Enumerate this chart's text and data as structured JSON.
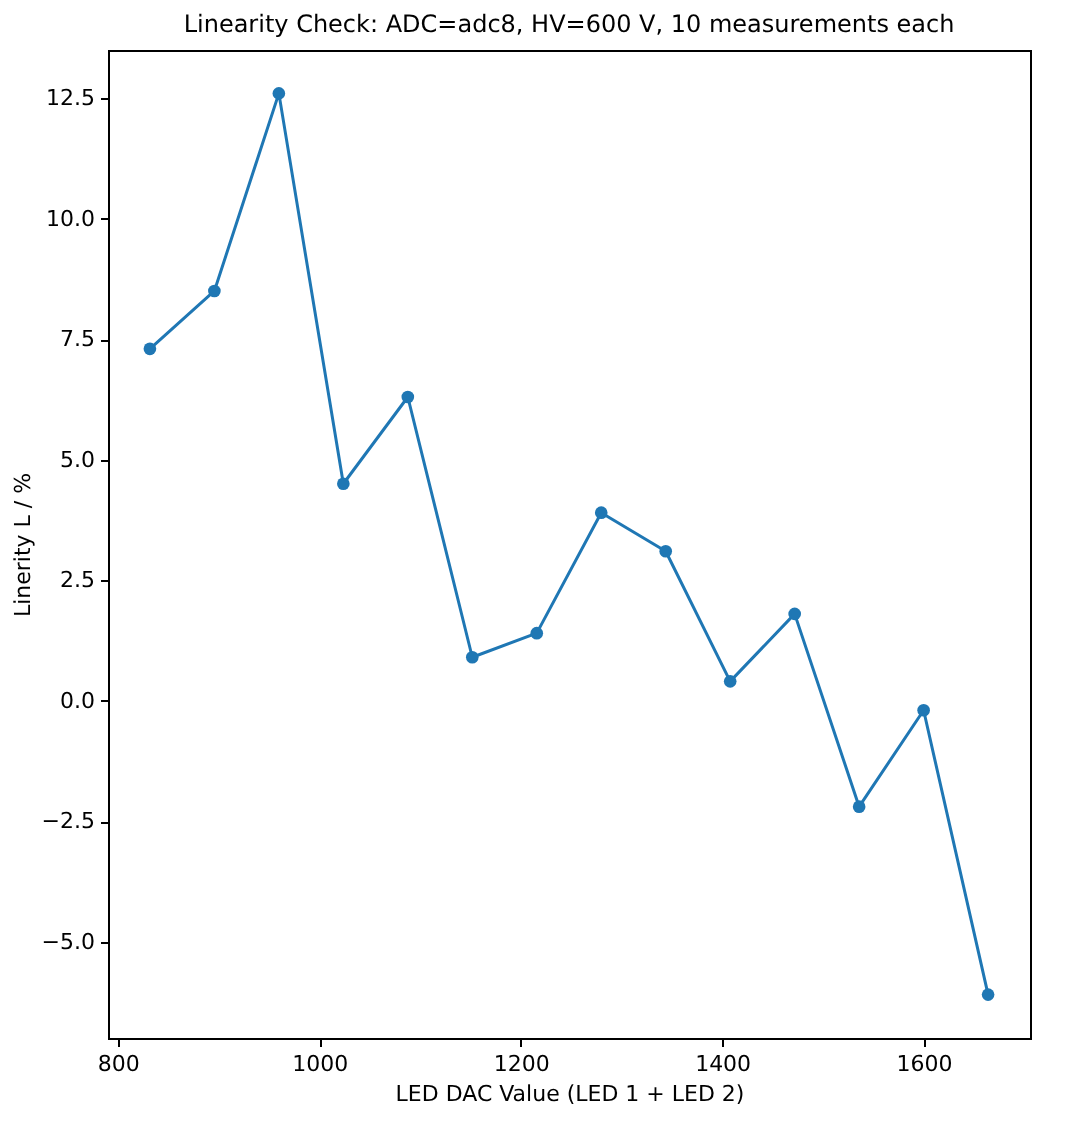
{
  "chart_data": {
    "type": "line",
    "title": "Linearity Check: ADC=adc8, HV=600 V, 10 measurements each",
    "xlabel": "LED DAC Value (LED 1 + LED 2)",
    "ylabel": "Linerity L / %",
    "x": [
      832,
      896,
      960,
      1024,
      1088,
      1152,
      1216,
      1280,
      1344,
      1408,
      1472,
      1536,
      1600,
      1664
    ],
    "series": [
      {
        "color": "#1f77b4",
        "values": [
          7.3,
          8.5,
          12.6,
          4.5,
          6.3,
          0.9,
          1.4,
          3.9,
          3.1,
          0.4,
          1.8,
          -2.2,
          -0.2,
          -6.1
        ]
      }
    ],
    "xlim": [
      790.4,
      1705.6
    ],
    "xticks": [
      800,
      1000,
      1200,
      1400,
      1600
    ],
    "ylim": [
      -7.0,
      13.5
    ],
    "yticks": [
      {
        "value": -5,
        "label": "−5.0"
      },
      {
        "value": -2.5,
        "label": "−2.5"
      },
      {
        "value": 0,
        "label": "0.0"
      },
      {
        "value": 2.5,
        "label": "2.5"
      },
      {
        "value": 5,
        "label": "5.0"
      },
      {
        "value": 7.5,
        "label": "7.5"
      },
      {
        "value": 10,
        "label": "10.0"
      },
      {
        "value": 12.5,
        "label": "12.5"
      }
    ],
    "grid": false,
    "marker": "circle",
    "line_style": "solid",
    "legend": false
  }
}
